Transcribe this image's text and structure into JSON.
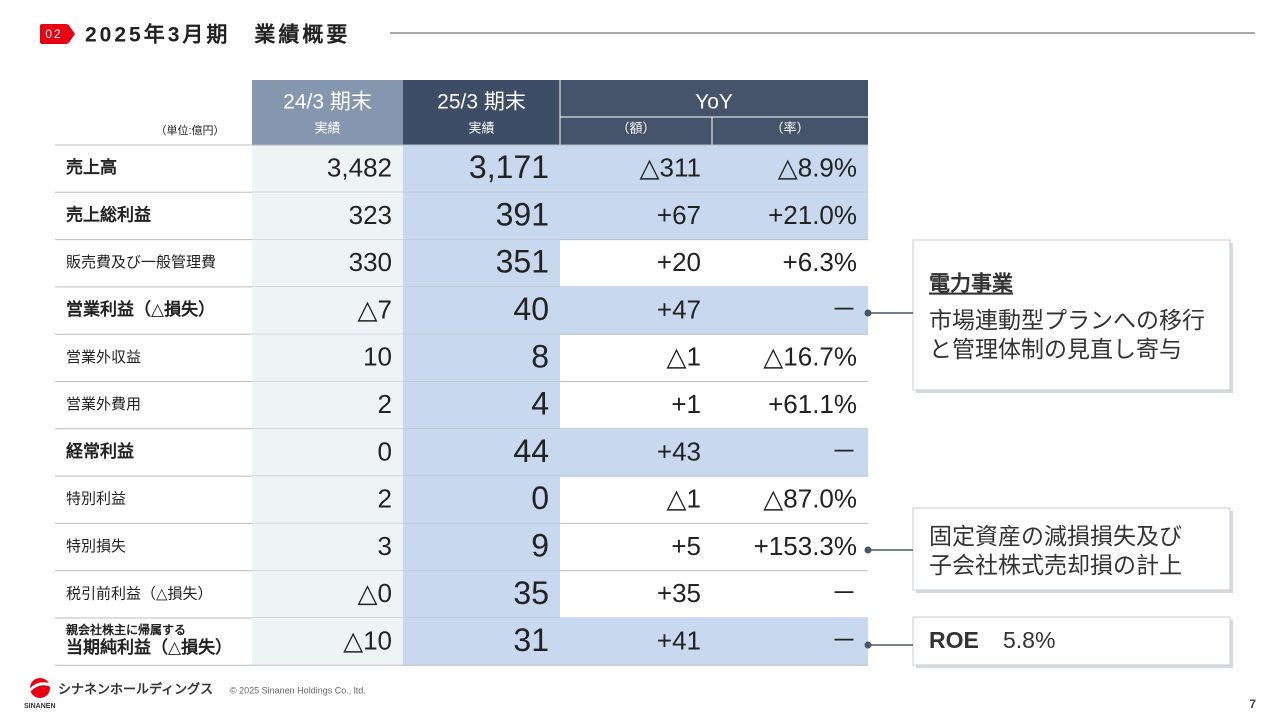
{
  "header": {
    "badge": "02",
    "title": "2025年3月期　業績概要"
  },
  "table": {
    "unit": "（単位:億円）",
    "columns": [
      "24/3 期末",
      "25/3 期末",
      "YoY"
    ],
    "subcolumns": [
      "実績",
      "実績",
      "（額）",
      "（率）"
    ],
    "rows": [
      {
        "label": "売上高",
        "bold": true,
        "values": [
          "3,482",
          "3,171",
          "△311",
          "△8.9%"
        ]
      },
      {
        "label": "売上総利益",
        "bold": true,
        "values": [
          "323",
          "391",
          "+67",
          "+21.0%"
        ]
      },
      {
        "label": "販売費及び一般管理費",
        "bold": false,
        "values": [
          "330",
          "351",
          "+20",
          "+6.3%"
        ]
      },
      {
        "label": "営業利益（△損失）",
        "bold": true,
        "values": [
          "△7",
          "40",
          "+47",
          "－"
        ]
      },
      {
        "label": "営業外収益",
        "bold": false,
        "values": [
          "10",
          "8",
          "△1",
          "△16.7%"
        ]
      },
      {
        "label": "営業外費用",
        "bold": false,
        "values": [
          "2",
          "4",
          "+1",
          "+61.1%"
        ]
      },
      {
        "label": "経常利益",
        "bold": true,
        "values": [
          "0",
          "44",
          "+43",
          "－"
        ]
      },
      {
        "label": "特別利益",
        "bold": false,
        "values": [
          "2",
          "0",
          "△1",
          "△87.0%"
        ]
      },
      {
        "label": "特別損失",
        "bold": false,
        "values": [
          "3",
          "9",
          "+5",
          "+153.3%"
        ]
      },
      {
        "label": "税引前利益（△損失）",
        "bold": false,
        "values": [
          "△0",
          "35",
          "+35",
          "－"
        ]
      },
      {
        "label_note": "親会社株主に帰属する",
        "label": "当期純利益（△損失）",
        "bold": true,
        "values": [
          "△10",
          "31",
          "+41",
          "－"
        ]
      }
    ]
  },
  "callouts": [
    {
      "title": "電力事業",
      "lines": [
        "市場連動型プランへの移行",
        "と管理体制の見直し寄与"
      ]
    },
    {
      "lines": [
        "固定資産の減損損失及び",
        "子会社株式売却損の計上"
      ]
    },
    {
      "title": "ROE",
      "lines": [
        "5.8%"
      ]
    }
  ],
  "footer": {
    "company": "シナネンホールディングス",
    "brand": "SINANEN",
    "copyright": "© 2025 Sinanen Holdings Co., ltd.",
    "page": "7"
  }
}
